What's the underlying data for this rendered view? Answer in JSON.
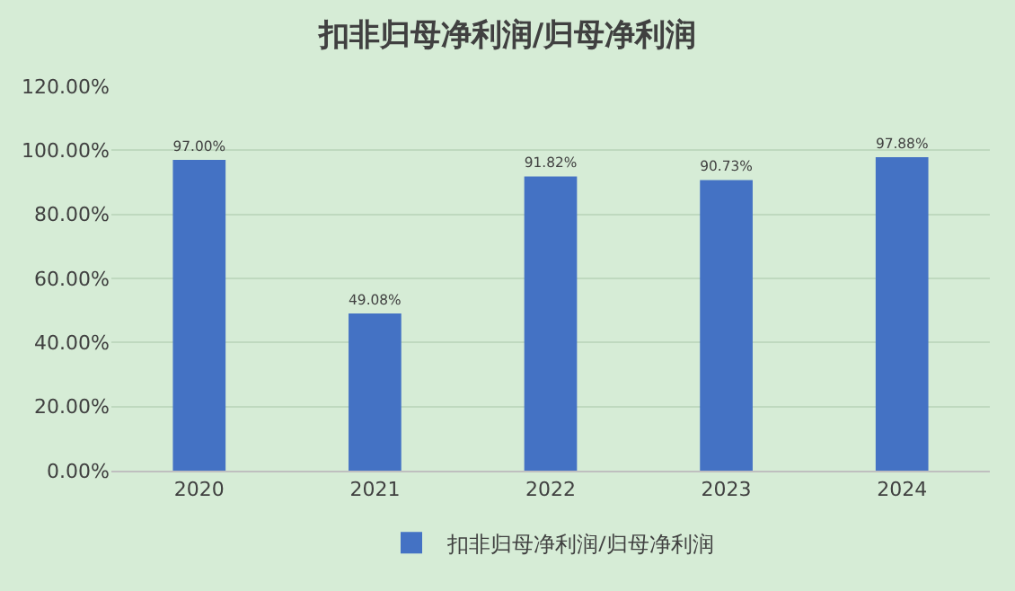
{
  "chart_data": {
    "type": "bar",
    "title": "扣非归母净利润/归母净利润",
    "categories": [
      "2020",
      "2021",
      "2022",
      "2023",
      "2024"
    ],
    "series": [
      {
        "name": "扣非归母净利润/归母净利润",
        "color": "#4472c4",
        "values": [
          97.0,
          49.08,
          91.82,
          90.73,
          97.88
        ],
        "value_labels": [
          "97.00%",
          "49.08%",
          "91.82%",
          "90.73%",
          "97.88%"
        ]
      }
    ],
    "ylim": [
      0,
      120
    ],
    "yticks": [
      {
        "value": 0,
        "label": "0.00%"
      },
      {
        "value": 20,
        "label": "20.00%"
      },
      {
        "value": 40,
        "label": "40.00%"
      },
      {
        "value": 60,
        "label": "60.00%"
      },
      {
        "value": 80,
        "label": "80.00%"
      },
      {
        "value": 100,
        "label": "100.00%"
      },
      {
        "value": 120,
        "label": "120.00%"
      }
    ],
    "grid": "y",
    "legend": "bottom"
  }
}
